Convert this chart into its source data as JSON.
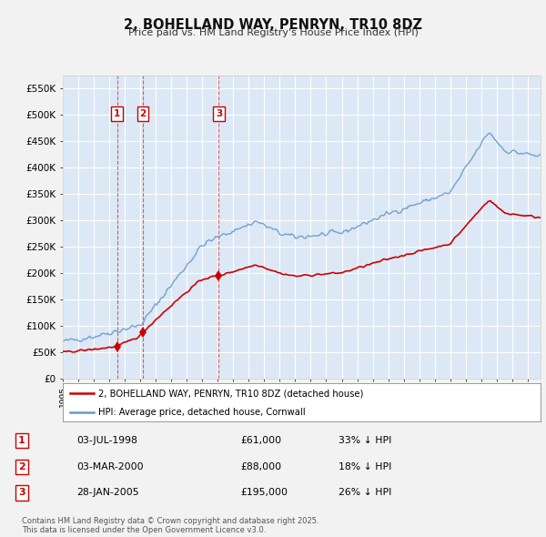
{
  "title": "2, BOHELLAND WAY, PENRYN, TR10 8DZ",
  "subtitle": "Price paid vs. HM Land Registry's House Price Index (HPI)",
  "ylim": [
    0,
    575000
  ],
  "yticks": [
    0,
    50000,
    100000,
    150000,
    200000,
    250000,
    300000,
    350000,
    400000,
    450000,
    500000,
    550000
  ],
  "xlim_start": 1995.0,
  "xlim_end": 2025.83,
  "fig_bg": "#f0f4f8",
  "plot_bg_color": "#dce8f5",
  "grid_color": "#ffffff",
  "legend_label_red": "2, BOHELLAND WAY, PENRYN, TR10 8DZ (detached house)",
  "legend_label_blue": "HPI: Average price, detached house, Cornwall",
  "transactions": [
    {
      "num": 1,
      "date": 1998.5,
      "price": 61000,
      "label": "1",
      "date_str": "03-JUL-1998",
      "price_str": "£61,000",
      "hpi_str": "33% ↓ HPI"
    },
    {
      "num": 2,
      "date": 2000.17,
      "price": 88000,
      "label": "2",
      "date_str": "03-MAR-2000",
      "price_str": "£88,000",
      "hpi_str": "18% ↓ HPI"
    },
    {
      "num": 3,
      "date": 2005.07,
      "price": 195000,
      "label": "3",
      "date_str": "28-JAN-2005",
      "price_str": "£195,000",
      "hpi_str": "26% ↓ HPI"
    }
  ],
  "footer": "Contains HM Land Registry data © Crown copyright and database right 2025.\nThis data is licensed under the Open Government Licence v3.0.",
  "red_color": "#cc0000",
  "blue_color": "#6699cc",
  "marker_color": "#cc0000"
}
